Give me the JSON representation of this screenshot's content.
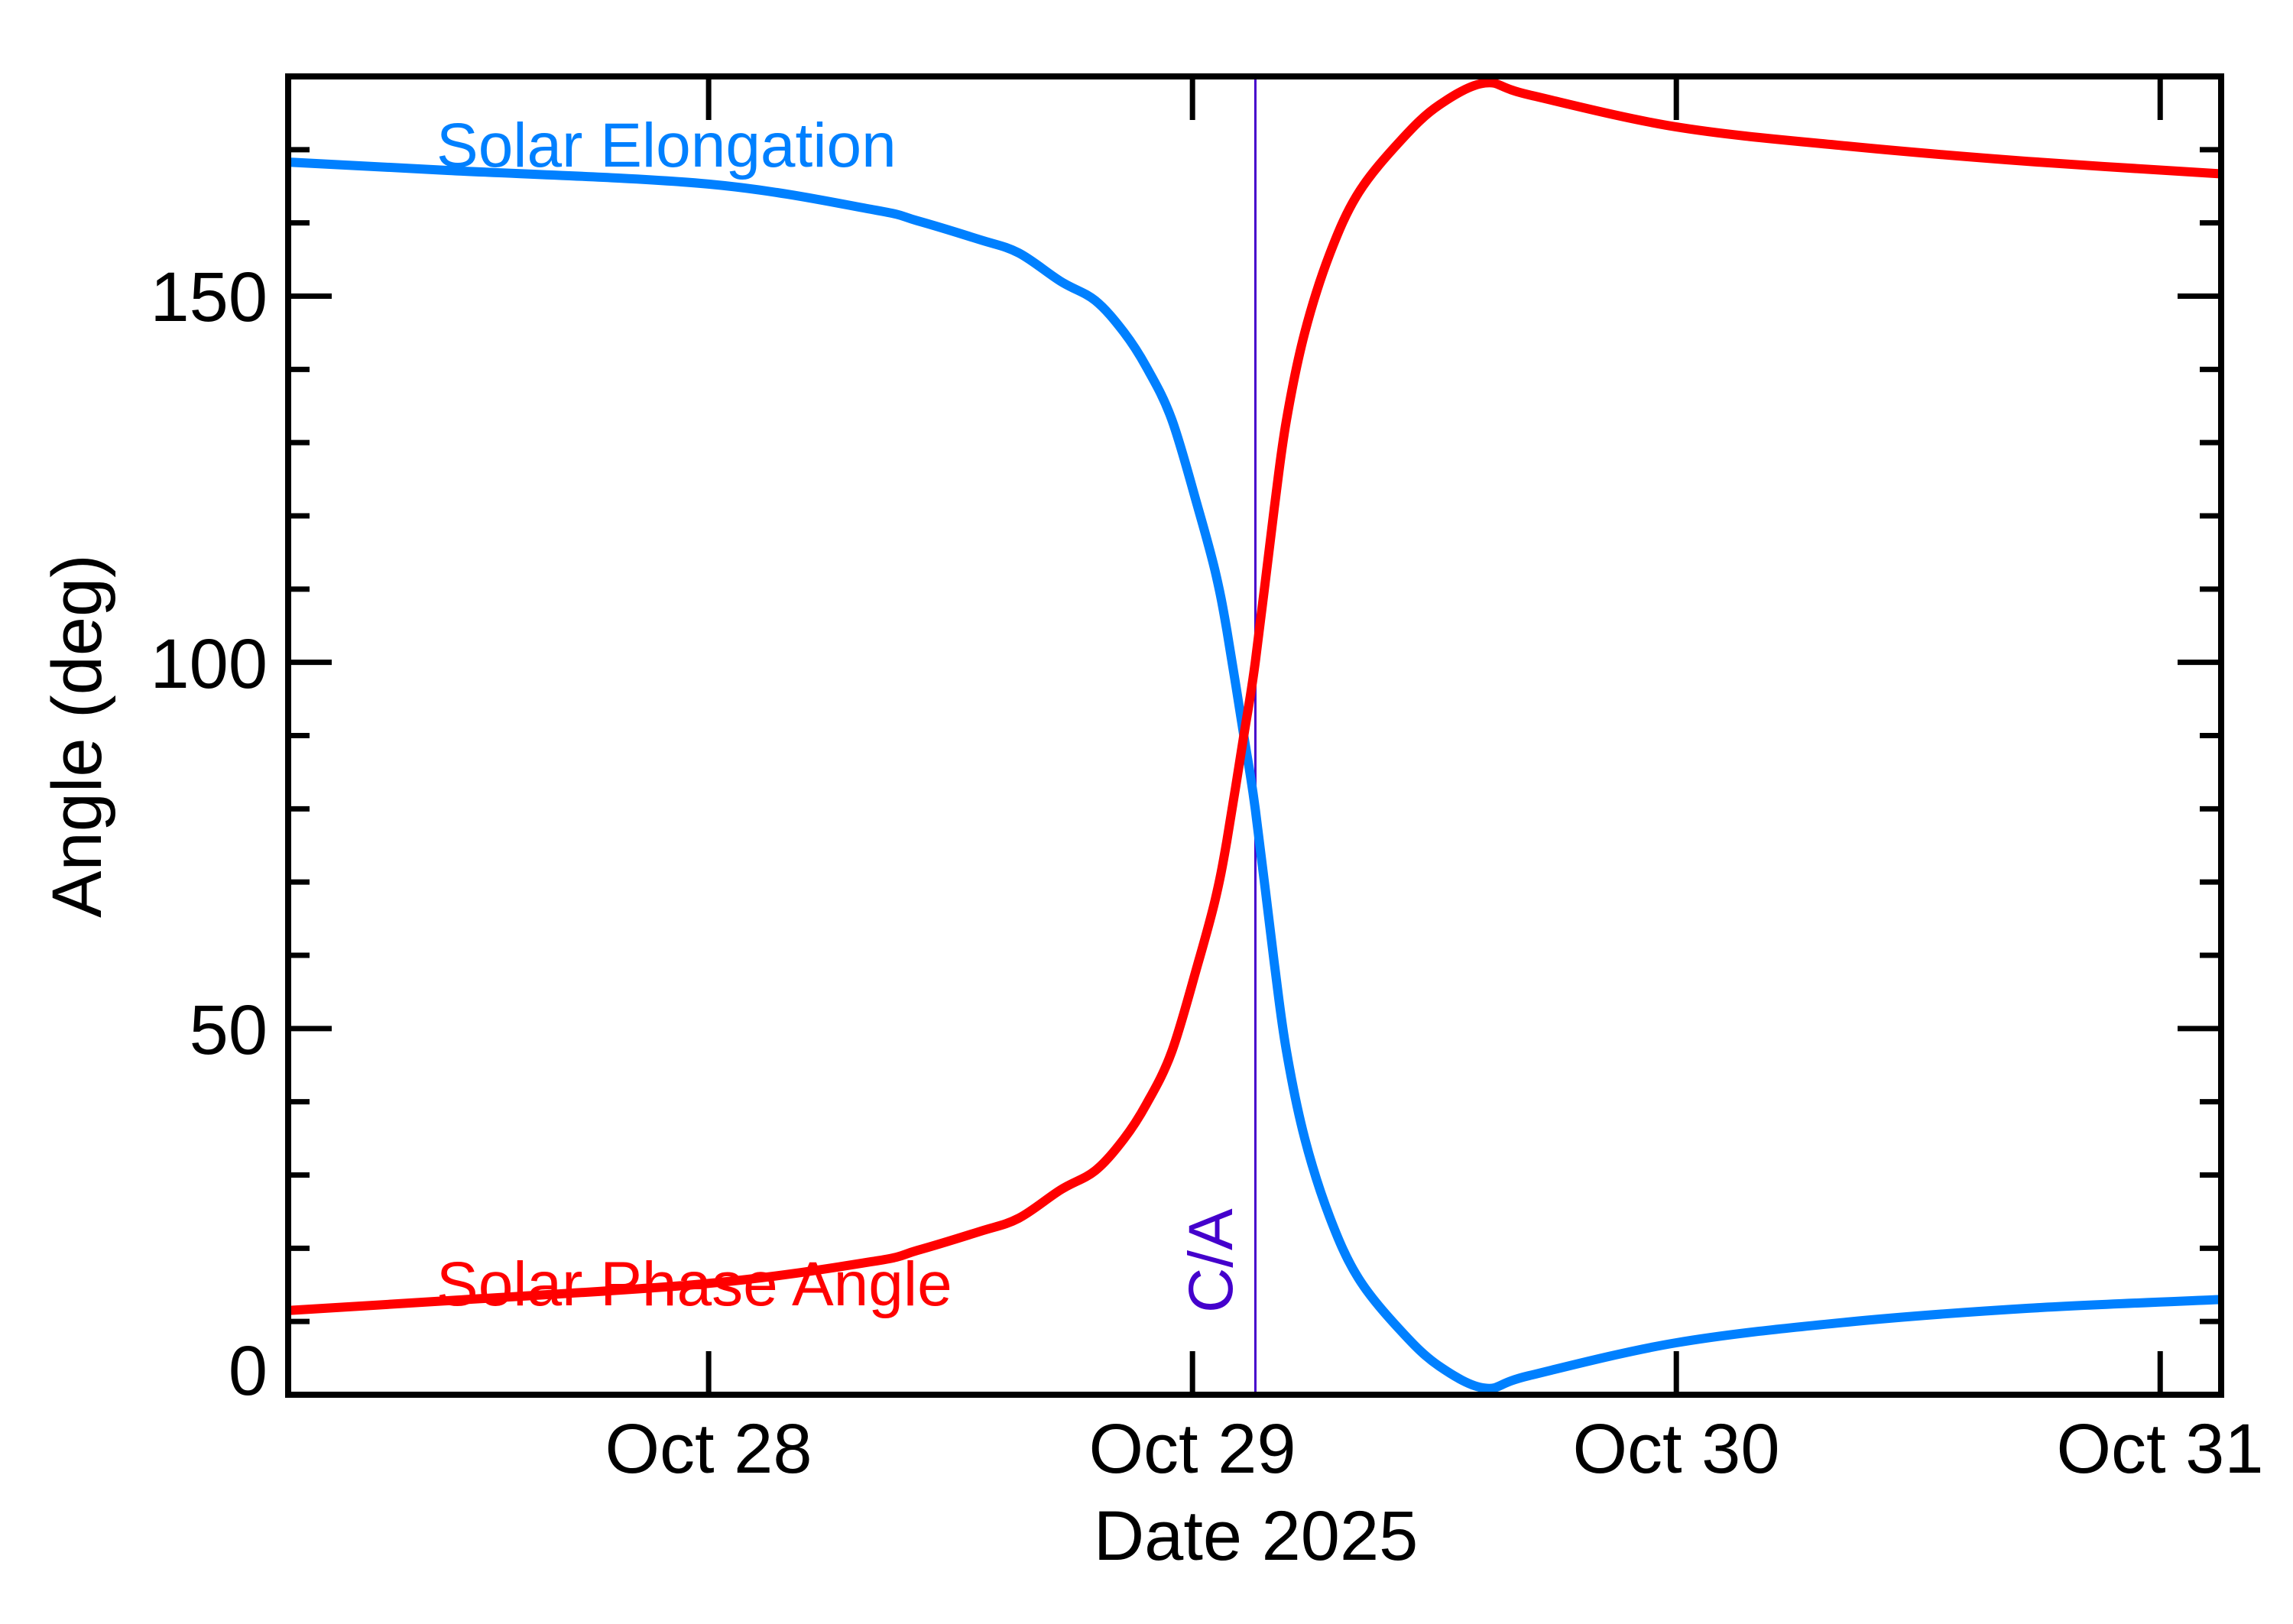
{
  "chart_data": {
    "type": "line",
    "title": "",
    "xlabel": "Date 2025",
    "ylabel": "Angle (deg)",
    "xlim": [
      27.131,
      31.126
    ],
    "ylim": [
      0,
      180
    ],
    "x_unit": "day of October 2025 (fractional)",
    "x_ticks": [
      {
        "value": 28,
        "label": "Oct 28"
      },
      {
        "value": 29,
        "label": "Oct 29"
      },
      {
        "value": 30,
        "label": "Oct 30"
      },
      {
        "value": 31,
        "label": "Oct 31"
      }
    ],
    "y_ticks": [
      {
        "value": 0,
        "label": "0"
      },
      {
        "value": 50,
        "label": "50"
      },
      {
        "value": 100,
        "label": "100"
      },
      {
        "value": 150,
        "label": "150"
      }
    ],
    "y_minor_step": 10,
    "grid": false,
    "legend": "inline labels",
    "x": [
      27.131,
      27.453,
      28.0,
      28.34,
      28.431,
      28.561,
      28.641,
      28.728,
      28.799,
      28.858,
      28.905,
      28.957,
      29.011,
      29.047,
      29.071,
      29.106,
      29.13,
      29.169,
      29.194,
      29.232,
      29.284,
      29.343,
      29.431,
      29.51,
      29.605,
      29.695,
      30.0,
      30.351,
      30.727,
      31.126
    ],
    "series": [
      {
        "name": "Solar Elongation",
        "color": "#0080ff",
        "values": [
          168.3,
          167.2,
          165.3,
          161.8,
          160.3,
          157.7,
          155.9,
          152.0,
          149.4,
          145.1,
          140.3,
          133.2,
          121.2,
          112.4,
          104.4,
          90.0,
          79.9,
          59.0,
          47.0,
          35.0,
          24.2,
          15.9,
          8.7,
          3.9,
          0.9,
          2.6,
          7.1,
          9.9,
          11.8,
          13.0
        ]
      },
      {
        "name": "Solar Phase Angle",
        "color": "#ff0000",
        "values": [
          11.5,
          12.8,
          15.2,
          18.2,
          19.7,
          22.3,
          24.1,
          28.0,
          30.6,
          34.9,
          39.7,
          46.8,
          58.8,
          67.6,
          75.6,
          90.0,
          100.1,
          121.0,
          133.0,
          145.0,
          155.8,
          164.1,
          171.3,
          176.1,
          179.1,
          177.5,
          173.1,
          170.5,
          168.4,
          166.7
        ]
      }
    ],
    "annotations": [
      {
        "type": "vline",
        "x": 29.13,
        "label": "C/A",
        "color": "#4400cc"
      }
    ]
  },
  "labels": {
    "elongation": "Solar Elongation",
    "phase": "Solar Phase Angle",
    "ca": "C/A",
    "xlabel": "Date 2025",
    "ylabel": "Angle (deg)",
    "xtick_0": "Oct 28",
    "xtick_1": "Oct 29",
    "xtick_2": "Oct 30",
    "xtick_3": "Oct 31",
    "ytick_0": "0",
    "ytick_1": "50",
    "ytick_2": "100",
    "ytick_3": "150"
  },
  "colors": {
    "elongation": "#0080ff",
    "phase": "#ff0000",
    "ca": "#4400cc",
    "axis": "#000000"
  }
}
